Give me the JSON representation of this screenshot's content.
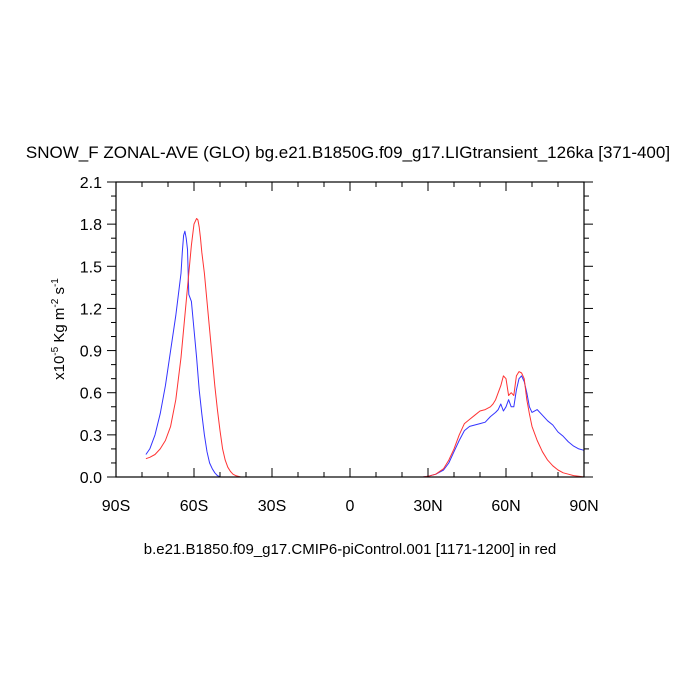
{
  "chart_data": {
    "type": "line",
    "title": "SNOW_F ZONAL-AVE (GLO) bg.e21.B1850G.f09_g17.LIGtransient_126ka [371-400]",
    "xlabel": "b.e21.B1850.f09_g17.CMIP6-piControl.001 [1171-1200] in red",
    "ylabel": {
      "prefix": "x10",
      "exp": "-5",
      "unit_a": " Kg m",
      "unit_a_exp": "-2",
      "unit_b": " s",
      "unit_b_exp": "-1"
    },
    "xlim": [
      -90,
      90
    ],
    "ylim": [
      0,
      2.1
    ],
    "xticks": [
      {
        "value": -90,
        "label": "90S"
      },
      {
        "value": -60,
        "label": "60S"
      },
      {
        "value": -30,
        "label": "30S"
      },
      {
        "value": 0,
        "label": "0"
      },
      {
        "value": 30,
        "label": "30N"
      },
      {
        "value": 60,
        "label": "60N"
      },
      {
        "value": 90,
        "label": "90N"
      }
    ],
    "yticks": [
      {
        "value": 0,
        "label": "0.0"
      },
      {
        "value": 0.3,
        "label": "0.3"
      },
      {
        "value": 0.6,
        "label": "0.6"
      },
      {
        "value": 0.9,
        "label": "0.9"
      },
      {
        "value": 1.2,
        "label": "1.2"
      },
      {
        "value": 1.5,
        "label": "1.5"
      },
      {
        "value": 1.8,
        "label": "1.8"
      },
      {
        "value": 2.1,
        "label": "2.1"
      }
    ],
    "series": [
      {
        "color": "#3333ff",
        "x": [
          -78.5,
          -77,
          -75,
          -73,
          -71,
          -69,
          -67,
          -66,
          -65,
          -64.5,
          -64,
          -63.5,
          -63,
          -62.5,
          -62,
          -61,
          -60,
          -59,
          -58,
          -57,
          -56,
          -55,
          -54,
          -53,
          -52,
          -51,
          -50,
          -48,
          -46,
          -44,
          -40,
          0,
          28,
          30,
          33,
          36,
          38,
          40,
          42,
          44,
          46,
          48,
          50,
          52,
          54,
          56,
          57,
          58,
          59,
          60,
          61,
          62,
          63,
          64,
          65,
          66,
          67,
          68,
          69,
          70,
          72,
          74,
          76,
          78,
          80,
          82,
          84,
          86,
          88,
          90
        ],
        "y": [
          0.16,
          0.2,
          0.3,
          0.45,
          0.65,
          0.9,
          1.15,
          1.3,
          1.45,
          1.6,
          1.72,
          1.75,
          1.7,
          1.62,
          1.3,
          1.25,
          1.05,
          0.85,
          0.62,
          0.45,
          0.3,
          0.18,
          0.1,
          0.06,
          0.03,
          0.01,
          0.0,
          0.0,
          0.0,
          0.0,
          0.0,
          0.0,
          0.0,
          0.005,
          0.02,
          0.05,
          0.1,
          0.18,
          0.26,
          0.33,
          0.36,
          0.37,
          0.38,
          0.39,
          0.43,
          0.46,
          0.48,
          0.52,
          0.47,
          0.5,
          0.55,
          0.5,
          0.5,
          0.62,
          0.7,
          0.72,
          0.68,
          0.6,
          0.5,
          0.46,
          0.48,
          0.44,
          0.4,
          0.37,
          0.32,
          0.29,
          0.25,
          0.22,
          0.2,
          0.19
        ]
      },
      {
        "color": "#ff3333",
        "x": [
          -78.5,
          -77,
          -75,
          -73,
          -71,
          -69,
          -67,
          -65,
          -63,
          -61,
          -60,
          -59,
          -58.5,
          -58,
          -57.5,
          -57,
          -56,
          -55,
          -54,
          -53,
          -52,
          -51,
          -50,
          -49,
          -48,
          -47,
          -46,
          -45,
          -44,
          -42,
          -40,
          0,
          28,
          30,
          33,
          36,
          38,
          40,
          42,
          44,
          46,
          48,
          50,
          52,
          54,
          55,
          56,
          57,
          58,
          59,
          60,
          61,
          62,
          63,
          64,
          65,
          66,
          67,
          68,
          69,
          70,
          72,
          74,
          76,
          78,
          80,
          82,
          84,
          86,
          88,
          90
        ],
        "y": [
          0.13,
          0.14,
          0.16,
          0.2,
          0.26,
          0.36,
          0.55,
          0.85,
          1.25,
          1.65,
          1.8,
          1.84,
          1.83,
          1.78,
          1.7,
          1.6,
          1.45,
          1.25,
          1.05,
          0.85,
          0.65,
          0.48,
          0.33,
          0.2,
          0.12,
          0.07,
          0.04,
          0.02,
          0.01,
          0.0,
          0.0,
          0.0,
          0.0,
          0.005,
          0.02,
          0.06,
          0.12,
          0.2,
          0.3,
          0.38,
          0.41,
          0.44,
          0.47,
          0.48,
          0.5,
          0.52,
          0.55,
          0.6,
          0.65,
          0.72,
          0.7,
          0.58,
          0.6,
          0.58,
          0.72,
          0.75,
          0.74,
          0.7,
          0.55,
          0.45,
          0.36,
          0.26,
          0.18,
          0.12,
          0.08,
          0.05,
          0.03,
          0.02,
          0.01,
          0.005,
          0.0
        ]
      }
    ],
    "grid": false,
    "legend": "none"
  }
}
